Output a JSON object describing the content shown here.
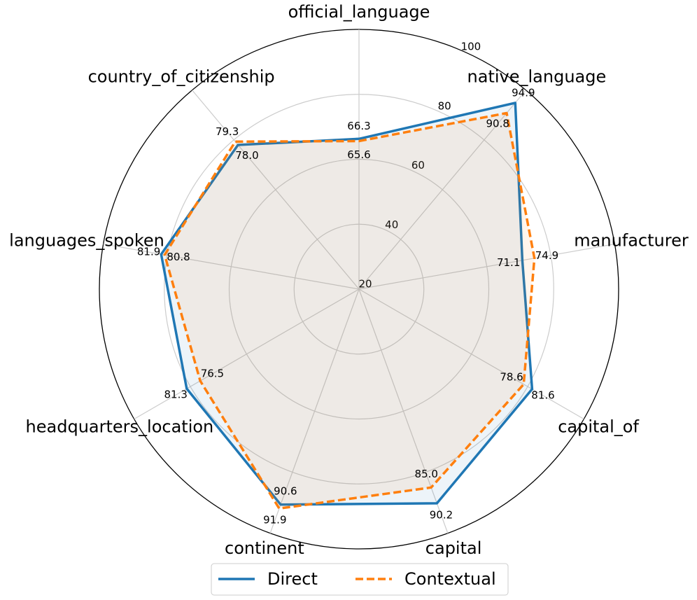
{
  "chart_data": {
    "type": "radar",
    "categories": [
      "official_language",
      "native_language",
      "manufacturer",
      "capital_of",
      "capital",
      "continent",
      "headquarters_location",
      "languages_spoken",
      "country_of_citizenship"
    ],
    "series": [
      {
        "name": "Direct",
        "color": "#1f77b4",
        "line_style": "solid",
        "values": [
          66.3,
          94.9,
          71.1,
          81.6,
          90.2,
          90.6,
          81.3,
          81.9,
          78.0
        ],
        "value_labels": [
          "66.3",
          "94.9",
          "71.1",
          "81.6",
          "90.2",
          "90.6",
          "81.3",
          "81.9",
          "78.0"
        ]
      },
      {
        "name": "Contextual",
        "color": "#ff7f0e",
        "line_style": "dashed",
        "values": [
          65.6,
          90.8,
          74.9,
          78.6,
          85.0,
          91.9,
          76.5,
          80.8,
          79.3
        ],
        "value_labels": [
          "65.6",
          "90.8",
          "74.9",
          "78.6",
          "85.0",
          "91.9",
          "76.5",
          "80.8",
          "79.3"
        ]
      }
    ],
    "ylim": [
      20,
      100
    ],
    "yticks": [
      20,
      40,
      60,
      80,
      100
    ],
    "grid": true
  }
}
